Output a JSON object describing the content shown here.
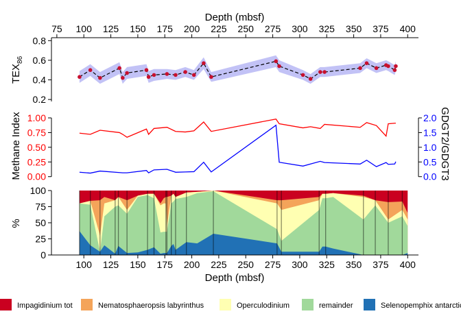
{
  "chart_data": [
    {
      "type": "line",
      "panel": "tex86",
      "x_title": "Depth (mbsf)",
      "x_ticks": [
        75,
        100,
        125,
        150,
        175,
        200,
        225,
        250,
        275,
        300,
        325,
        350,
        375,
        400
      ],
      "y_label_main": "TEX",
      "y_label_sub": "86",
      "y_ticks": [
        0.2,
        0.4,
        0.6,
        0.8
      ],
      "y_tick_labels": [
        "0.2",
        "0.4",
        "0.6",
        "0.8"
      ],
      "xlim": [
        70,
        410
      ],
      "ylim": [
        0.18,
        0.83
      ],
      "band_color": "#c2c2f6",
      "line_color": "#000000",
      "point_color": "#c8102e",
      "x": [
        96,
        106,
        115,
        133,
        136,
        140,
        158,
        160,
        165,
        177,
        185,
        194,
        202,
        211,
        218,
        278,
        281,
        303,
        310,
        319,
        323,
        356,
        362,
        371,
        380,
        382,
        388,
        389
      ],
      "y": [
        0.43,
        0.5,
        0.42,
        0.52,
        0.42,
        0.47,
        0.5,
        0.43,
        0.45,
        0.46,
        0.45,
        0.48,
        0.45,
        0.57,
        0.43,
        0.59,
        0.54,
        0.45,
        0.41,
        0.48,
        0.48,
        0.52,
        0.57,
        0.52,
        0.55,
        0.54,
        0.5,
        0.54
      ],
      "band": [
        0.06,
        0.06,
        0.06,
        0.06,
        0.06,
        0.06,
        0.06,
        0.06,
        0.06,
        0.05,
        0.05,
        0.05,
        0.05,
        0.06,
        0.05,
        0.06,
        0.06,
        0.05,
        0.05,
        0.05,
        0.05,
        0.05,
        0.05,
        0.05,
        0.05,
        0.05,
        0.05,
        0.05
      ]
    },
    {
      "type": "line",
      "panel": "methane",
      "xlim": [
        70,
        410
      ],
      "y_left_label": "Methane Index",
      "y_left_ticks": [
        0,
        0.25,
        0.5,
        0.75,
        1.0
      ],
      "y_left_tick_labels": [
        "0.00",
        "0.25",
        "0.50",
        "0.75",
        "1.00"
      ],
      "y_left_lim": [
        -0.05,
        1.07
      ],
      "y_left_color": "#ff0000",
      "y_right_label": "GDGT2/GDGT3",
      "y_right_ticks": [
        0,
        0.5,
        1.0,
        1.5,
        2.0
      ],
      "y_right_tick_labels": [
        "0.0",
        "0.5",
        "1.0",
        "1.5",
        "2.0"
      ],
      "y_right_lim": [
        -0.1,
        2.14
      ],
      "y_right_color": "#0000ff",
      "x": [
        96,
        106,
        115,
        133,
        136,
        140,
        158,
        160,
        165,
        177,
        185,
        194,
        202,
        211,
        218,
        278,
        281,
        303,
        310,
        319,
        323,
        356,
        362,
        371,
        380,
        382,
        388,
        389
      ],
      "methane": [
        0.74,
        0.72,
        0.79,
        0.75,
        0.72,
        0.67,
        0.81,
        0.72,
        0.82,
        0.84,
        0.77,
        0.76,
        0.78,
        0.93,
        0.77,
        0.98,
        0.9,
        0.83,
        0.85,
        0.82,
        0.89,
        0.84,
        0.92,
        0.87,
        0.69,
        0.9,
        0.91,
        0.91
      ],
      "gdgt": [
        0.15,
        0.12,
        0.19,
        0.14,
        0.13,
        0.13,
        0.21,
        0.13,
        0.23,
        0.25,
        0.15,
        0.16,
        0.17,
        0.49,
        0.16,
        1.75,
        0.49,
        0.36,
        0.43,
        0.52,
        0.48,
        0.43,
        0.56,
        0.34,
        0.48,
        0.42,
        0.43,
        0.51
      ]
    },
    {
      "type": "area",
      "panel": "composition",
      "x_title": "Depth (mbsf)",
      "x_ticks": [
        100,
        125,
        150,
        175,
        200,
        225,
        250,
        275,
        300,
        325,
        350,
        375,
        400
      ],
      "xlim": [
        70,
        410
      ],
      "y_label": "%",
      "y_ticks": [
        0,
        25,
        50,
        75,
        100
      ],
      "ylim": [
        0,
        100
      ],
      "series_order_bottom_up": [
        "Selenopemphix antarctica",
        "remainder",
        "Operculodinium",
        "Nematosphaeropsis labyrinthus",
        "Impagidinium tot"
      ],
      "legend_labels": [
        "Impagidinium tot",
        "Nematosphaeropsis labyrinthus",
        "Operculodinium",
        "remainder",
        "Selenopemphix antarctica"
      ],
      "colors": {
        "Impagidinium tot": "#ca0020",
        "Nematosphaeropsis labyrinthus": "#f4a45a",
        "Operculodinium": "#ffffb2",
        "remainder": "#a1d99b",
        "Selenopemphix antarctica": "#2171b5"
      },
      "x": [
        96,
        106,
        115,
        119,
        129,
        132,
        140,
        150,
        159,
        165,
        171,
        174,
        176,
        177,
        181,
        183,
        185,
        195,
        205,
        220,
        279,
        283,
        318,
        321,
        324,
        331,
        359,
        370,
        382,
        395,
        400
      ],
      "cumulative": {
        "Selenopemphix antarctica": [
          37,
          15,
          5,
          15,
          2,
          14,
          3,
          4,
          8,
          12,
          2,
          3,
          3,
          3,
          14,
          17,
          8,
          20,
          18,
          33,
          18,
          5,
          5,
          13,
          13,
          10,
          0,
          0,
          0,
          0,
          3
        ],
        "remainder": [
          80,
          78,
          5,
          60,
          75,
          77,
          64,
          90,
          93,
          88,
          35,
          36,
          36,
          36,
          80,
          83,
          87,
          90,
          96,
          99,
          40,
          22,
          70,
          88,
          88,
          90,
          55,
          77,
          50,
          60,
          45
        ],
        "Operculodinium": [
          80,
          84,
          30,
          80,
          85,
          90,
          70,
          92,
          95,
          95,
          77,
          80,
          80,
          45,
          92,
          95,
          90,
          97,
          98,
          100,
          80,
          70,
          85,
          95,
          95,
          96,
          90,
          85,
          55,
          70,
          55
        ],
        "Nematosphaeropsis labyrinthus": [
          80,
          84,
          85,
          90,
          85,
          90,
          85,
          92,
          95,
          95,
          80,
          88,
          90,
          90,
          92,
          95,
          90,
          97,
          98,
          100,
          85,
          85,
          90,
          95,
          95,
          96,
          92,
          85,
          82,
          83,
          65
        ],
        "Impagidinium tot": [
          100,
          100,
          100,
          100,
          100,
          100,
          100,
          100,
          100,
          100,
          100,
          100,
          100,
          100,
          100,
          100,
          100,
          100,
          100,
          100,
          100,
          100,
          100,
          100,
          100,
          100,
          100,
          100,
          100,
          100,
          100
        ]
      },
      "sample_lines": [
        96,
        106,
        115,
        129,
        132,
        140,
        159,
        165,
        176,
        177,
        181,
        185,
        195,
        220,
        279,
        283,
        318,
        324,
        359,
        370,
        382,
        395
      ]
    }
  ]
}
